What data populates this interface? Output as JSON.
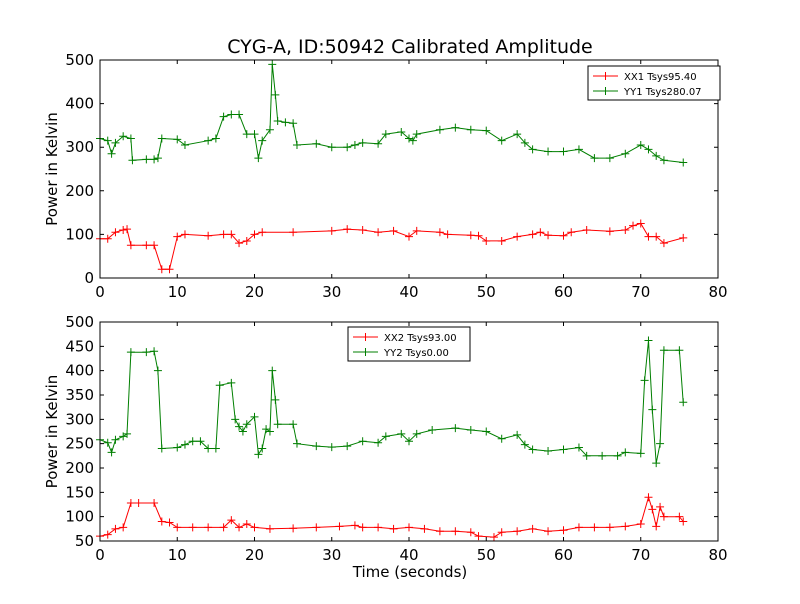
{
  "figure": {
    "title": "CYG-A, ID:50942 Calibrated Amplitude",
    "xlabel": "Time (seconds)"
  },
  "colors": {
    "red": "#ff0000",
    "green": "#007f00",
    "axes": "#000000"
  },
  "chart_data": [
    {
      "type": "line",
      "title": "CYG-A, ID:50942 Calibrated Amplitude",
      "xlabel": "",
      "ylabel": "Power in Kelvin",
      "xlim": [
        0,
        80
      ],
      "ylim": [
        0,
        500
      ],
      "xticks": [
        0,
        10,
        20,
        30,
        40,
        50,
        60,
        70,
        80
      ],
      "yticks": [
        0,
        100,
        200,
        300,
        400,
        500
      ],
      "grid": false,
      "legend_position": "top-right",
      "marker": "+",
      "series": [
        {
          "name": "XX1 Tsys95.40",
          "color": "#ff0000",
          "points": [
            [
              0,
              90
            ],
            [
              1,
              90
            ],
            [
              2,
              105
            ],
            [
              3,
              110
            ],
            [
              3.5,
              112
            ],
            [
              4,
              75
            ],
            [
              6,
              75
            ],
            [
              7,
              75
            ],
            [
              8,
              20
            ],
            [
              9,
              20
            ],
            [
              10,
              95
            ],
            [
              11,
              100
            ],
            [
              14,
              97
            ],
            [
              16,
              100
            ],
            [
              17,
              100
            ],
            [
              18,
              80
            ],
            [
              19,
              85
            ],
            [
              20,
              100
            ],
            [
              21,
              105
            ],
            [
              25,
              105
            ],
            [
              30,
              108
            ],
            [
              32,
              112
            ],
            [
              34,
              110
            ],
            [
              36,
              105
            ],
            [
              38,
              108
            ],
            [
              40,
              95
            ],
            [
              41,
              108
            ],
            [
              44,
              105
            ],
            [
              45,
              100
            ],
            [
              48,
              98
            ],
            [
              49,
              97
            ],
            [
              50,
              85
            ],
            [
              52,
              85
            ],
            [
              54,
              95
            ],
            [
              56,
              100
            ],
            [
              57,
              105
            ],
            [
              58,
              98
            ],
            [
              60,
              97
            ],
            [
              61,
              105
            ],
            [
              63,
              110
            ],
            [
              66,
              107
            ],
            [
              68,
              110
            ],
            [
              69,
              120
            ],
            [
              70,
              125
            ],
            [
              71,
              95
            ],
            [
              72,
              95
            ],
            [
              73,
              80
            ],
            [
              75.5,
              92
            ]
          ]
        },
        {
          "name": "YY1 Tsys280.07",
          "color": "#007f00",
          "points": [
            [
              0,
              320
            ],
            [
              1,
              315
            ],
            [
              1.5,
              285
            ],
            [
              2,
              310
            ],
            [
              3,
              325
            ],
            [
              4,
              320
            ],
            [
              4.2,
              270
            ],
            [
              6,
              272
            ],
            [
              7,
              272
            ],
            [
              7.5,
              275
            ],
            [
              8,
              320
            ],
            [
              10,
              318
            ],
            [
              11,
              305
            ],
            [
              14,
              315
            ],
            [
              15,
              320
            ],
            [
              16,
              370
            ],
            [
              17,
              375
            ],
            [
              18,
              375
            ],
            [
              19,
              330
            ],
            [
              20,
              330
            ],
            [
              20.5,
              275
            ],
            [
              21,
              315
            ],
            [
              22,
              340
            ],
            [
              22.3,
              490
            ],
            [
              22.7,
              420
            ],
            [
              23,
              360
            ],
            [
              24,
              357
            ],
            [
              25,
              355
            ],
            [
              25.5,
              305
            ],
            [
              28,
              308
            ],
            [
              30,
              300
            ],
            [
              32,
              300
            ],
            [
              33,
              305
            ],
            [
              34,
              310
            ],
            [
              36,
              308
            ],
            [
              37,
              330
            ],
            [
              39,
              335
            ],
            [
              40,
              320
            ],
            [
              40.5,
              315
            ],
            [
              41,
              330
            ],
            [
              44,
              340
            ],
            [
              46,
              345
            ],
            [
              48,
              340
            ],
            [
              50,
              338
            ],
            [
              52,
              315
            ],
            [
              54,
              330
            ],
            [
              55,
              310
            ],
            [
              56,
              295
            ],
            [
              58,
              290
            ],
            [
              60,
              290
            ],
            [
              62,
              295
            ],
            [
              64,
              275
            ],
            [
              66,
              275
            ],
            [
              68,
              285
            ],
            [
              70,
              305
            ],
            [
              71,
              295
            ],
            [
              72,
              280
            ],
            [
              73,
              270
            ],
            [
              75.5,
              265
            ]
          ]
        }
      ]
    },
    {
      "type": "line",
      "title": "",
      "xlabel": "Time (seconds)",
      "ylabel": "Power in Kelvin",
      "xlim": [
        0,
        80
      ],
      "ylim": [
        50,
        500
      ],
      "xticks": [
        0,
        10,
        20,
        30,
        40,
        50,
        60,
        70,
        80
      ],
      "yticks": [
        50,
        100,
        150,
        200,
        250,
        300,
        350,
        400,
        450,
        500
      ],
      "grid": false,
      "legend_position": "top-center",
      "marker": "+",
      "series": [
        {
          "name": "XX2 Tsys93.00",
          "color": "#ff0000",
          "points": [
            [
              0,
              60
            ],
            [
              1,
              63
            ],
            [
              2,
              75
            ],
            [
              3,
              78
            ],
            [
              4,
              128
            ],
            [
              5,
              128
            ],
            [
              7,
              128
            ],
            [
              8,
              90
            ],
            [
              9,
              88
            ],
            [
              10,
              78
            ],
            [
              12,
              78
            ],
            [
              14,
              78
            ],
            [
              16,
              78
            ],
            [
              17,
              93
            ],
            [
              18,
              78
            ],
            [
              19,
              85
            ],
            [
              20,
              78
            ],
            [
              22,
              75
            ],
            [
              25,
              76
            ],
            [
              28,
              78
            ],
            [
              31,
              80
            ],
            [
              33,
              82
            ],
            [
              34,
              78
            ],
            [
              36,
              78
            ],
            [
              38,
              75
            ],
            [
              40,
              78
            ],
            [
              42,
              75
            ],
            [
              44,
              70
            ],
            [
              46,
              70
            ],
            [
              48,
              68
            ],
            [
              49,
              60
            ],
            [
              51,
              58
            ],
            [
              52,
              68
            ],
            [
              54,
              70
            ],
            [
              56,
              75
            ],
            [
              58,
              70
            ],
            [
              60,
              72
            ],
            [
              62,
              78
            ],
            [
              64,
              78
            ],
            [
              66,
              78
            ],
            [
              68,
              80
            ],
            [
              70,
              85
            ],
            [
              71,
              140
            ],
            [
              71.5,
              115
            ],
            [
              72,
              80
            ],
            [
              72.5,
              120
            ],
            [
              73,
              100
            ],
            [
              75,
              100
            ],
            [
              75.5,
              90
            ]
          ]
        },
        {
          "name": "YY2 Tsys0.00",
          "color": "#007f00",
          "points": [
            [
              0,
              258
            ],
            [
              1,
              252
            ],
            [
              1.5,
              232
            ],
            [
              2,
              258
            ],
            [
              3,
              265
            ],
            [
              3.5,
              270
            ],
            [
              4,
              438
            ],
            [
              6,
              438
            ],
            [
              7,
              440
            ],
            [
              7.5,
              400
            ],
            [
              8,
              240
            ],
            [
              10,
              242
            ],
            [
              11,
              248
            ],
            [
              12,
              255
            ],
            [
              13,
              255
            ],
            [
              14,
              240
            ],
            [
              15,
              240
            ],
            [
              15.5,
              370
            ],
            [
              17,
              375
            ],
            [
              17.5,
              300
            ],
            [
              18,
              285
            ],
            [
              18.5,
              275
            ],
            [
              19,
              290
            ],
            [
              20,
              305
            ],
            [
              20.5,
              228
            ],
            [
              21,
              240
            ],
            [
              21.5,
              280
            ],
            [
              22,
              275
            ],
            [
              22.3,
              400
            ],
            [
              22.7,
              340
            ],
            [
              23,
              290
            ],
            [
              25,
              290
            ],
            [
              25.5,
              250
            ],
            [
              28,
              245
            ],
            [
              30,
              243
            ],
            [
              32,
              245
            ],
            [
              34,
              255
            ],
            [
              36,
              252
            ],
            [
              37,
              265
            ],
            [
              39,
              270
            ],
            [
              40,
              255
            ],
            [
              41,
              270
            ],
            [
              43,
              278
            ],
            [
              46,
              282
            ],
            [
              48,
              278
            ],
            [
              50,
              275
            ],
            [
              52,
              260
            ],
            [
              54,
              268
            ],
            [
              55,
              248
            ],
            [
              56,
              238
            ],
            [
              58,
              235
            ],
            [
              60,
              238
            ],
            [
              62,
              242
            ],
            [
              63,
              225
            ],
            [
              65,
              225
            ],
            [
              67,
              225
            ],
            [
              68,
              232
            ],
            [
              70,
              230
            ],
            [
              70.5,
              380
            ],
            [
              71,
              462
            ],
            [
              71.5,
              320
            ],
            [
              72,
              210
            ],
            [
              72.5,
              250
            ],
            [
              73,
              442
            ],
            [
              75,
              442
            ],
            [
              75.5,
              335
            ]
          ]
        }
      ]
    }
  ]
}
